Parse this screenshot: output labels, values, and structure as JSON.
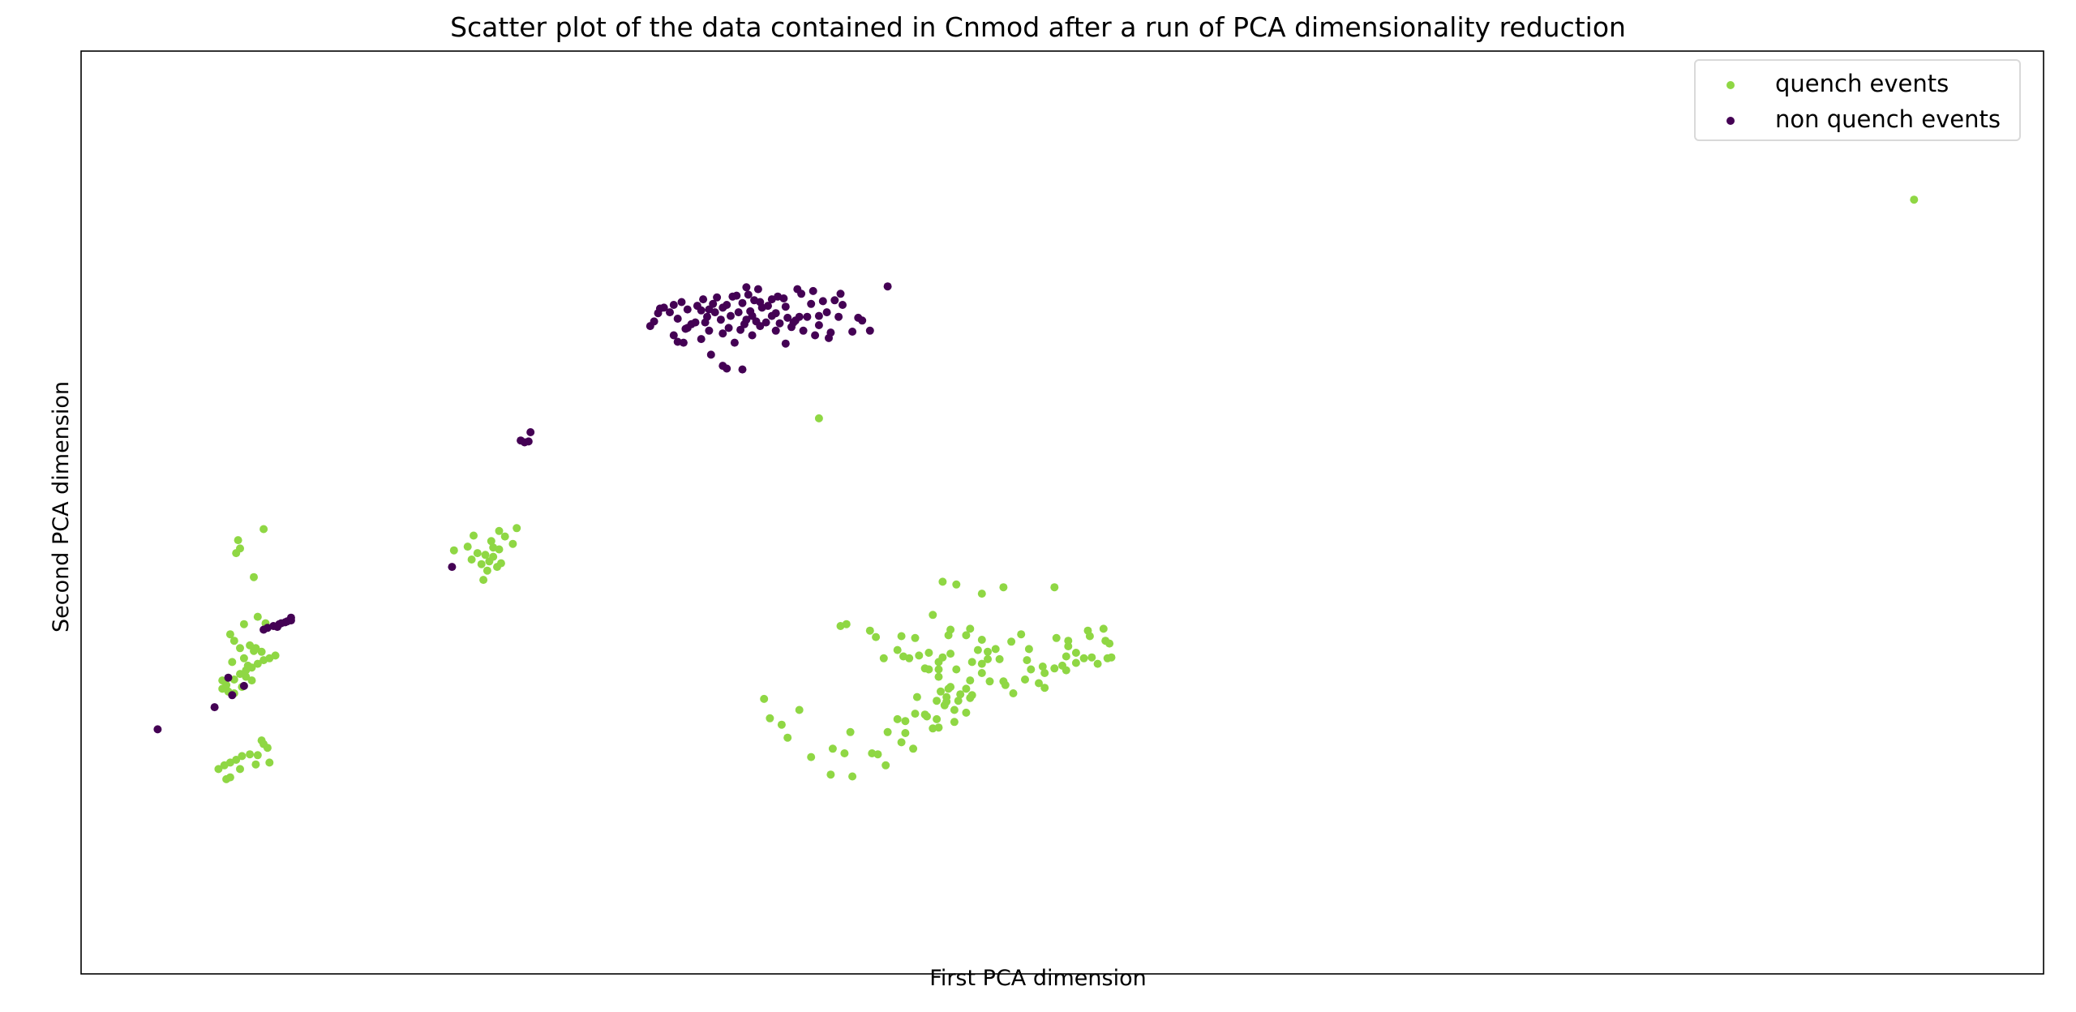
{
  "colors": {
    "quench": "#8fd744",
    "non_quench": "#440154",
    "axes": "#000000"
  },
  "chart_data": {
    "type": "scatter",
    "title": "Scatter plot of the data contained in Cnmod after a run of PCA dimensionality reduction",
    "xlabel": "First PCA dimension",
    "ylabel": "Second PCA dimension",
    "xticks": [],
    "yticks": [],
    "xlim": [
      0,
      1
    ],
    "ylim": [
      0,
      1
    ],
    "grid": false,
    "legend_position": "top-right",
    "series": [
      {
        "name": "quench events",
        "color": "#8fd744",
        "points": [
          [
            0.934,
            0.839
          ],
          [
            0.376,
            0.602
          ],
          [
            0.08,
            0.47
          ],
          [
            0.093,
            0.482
          ],
          [
            0.079,
            0.456
          ],
          [
            0.081,
            0.461
          ],
          [
            0.088,
            0.43
          ],
          [
            0.083,
            0.379
          ],
          [
            0.088,
            0.35
          ],
          [
            0.087,
            0.318
          ],
          [
            0.09,
            0.387
          ],
          [
            0.094,
            0.38
          ],
          [
            0.072,
            0.318
          ],
          [
            0.075,
            0.306
          ],
          [
            0.078,
            0.304
          ],
          [
            0.082,
            0.311
          ],
          [
            0.084,
            0.322
          ],
          [
            0.089,
            0.227
          ],
          [
            0.096,
            0.229
          ],
          [
            0.093,
            0.249
          ],
          [
            0.086,
            0.238
          ],
          [
            0.095,
            0.245
          ],
          [
            0.085,
            0.334
          ],
          [
            0.083,
            0.342
          ],
          [
            0.081,
            0.353
          ],
          [
            0.078,
            0.361
          ],
          [
            0.076,
            0.368
          ],
          [
            0.077,
            0.338
          ],
          [
            0.072,
            0.309
          ],
          [
            0.074,
            0.313
          ],
          [
            0.078,
            0.319
          ],
          [
            0.081,
            0.325
          ],
          [
            0.084,
            0.329
          ],
          [
            0.087,
            0.332
          ],
          [
            0.09,
            0.336
          ],
          [
            0.093,
            0.34
          ],
          [
            0.096,
            0.342
          ],
          [
            0.099,
            0.345
          ],
          [
            0.092,
            0.349
          ],
          [
            0.089,
            0.353
          ],
          [
            0.086,
            0.356
          ],
          [
            0.073,
            0.226
          ],
          [
            0.076,
            0.229
          ],
          [
            0.079,
            0.232
          ],
          [
            0.082,
            0.236
          ],
          [
            0.074,
            0.211
          ],
          [
            0.076,
            0.213
          ],
          [
            0.081,
            0.222
          ],
          [
            0.09,
            0.237
          ],
          [
            0.092,
            0.253
          ],
          [
            0.07,
            0.222
          ],
          [
            0.19,
            0.459
          ],
          [
            0.197,
            0.463
          ],
          [
            0.199,
            0.449
          ],
          [
            0.202,
            0.456
          ],
          [
            0.204,
            0.444
          ],
          [
            0.206,
            0.454
          ],
          [
            0.208,
            0.447
          ],
          [
            0.21,
            0.462
          ],
          [
            0.212,
            0.441
          ],
          [
            0.214,
            0.445
          ],
          [
            0.207,
            0.437
          ],
          [
            0.213,
            0.46
          ],
          [
            0.216,
            0.474
          ],
          [
            0.22,
            0.466
          ],
          [
            0.205,
            0.427
          ],
          [
            0.209,
            0.469
          ],
          [
            0.222,
            0.483
          ],
          [
            0.2,
            0.475
          ],
          [
            0.213,
            0.48
          ],
          [
            0.21,
            0.452
          ],
          [
            0.348,
            0.298
          ],
          [
            0.357,
            0.27
          ],
          [
            0.351,
            0.277
          ],
          [
            0.366,
            0.286
          ],
          [
            0.36,
            0.256
          ],
          [
            0.382,
            0.216
          ],
          [
            0.372,
            0.235
          ],
          [
            0.383,
            0.244
          ],
          [
            0.392,
            0.262
          ],
          [
            0.389,
            0.239
          ],
          [
            0.41,
            0.226
          ],
          [
            0.393,
            0.214
          ],
          [
            0.403,
            0.239
          ],
          [
            0.411,
            0.262
          ],
          [
            0.42,
            0.261
          ],
          [
            0.424,
            0.244
          ],
          [
            0.406,
            0.238
          ],
          [
            0.416,
            0.276
          ],
          [
            0.431,
            0.279
          ],
          [
            0.426,
            0.3
          ],
          [
            0.418,
            0.251
          ],
          [
            0.44,
            0.291
          ],
          [
            0.434,
            0.266
          ],
          [
            0.445,
            0.286
          ],
          [
            0.441,
            0.295
          ],
          [
            0.43,
            0.281
          ],
          [
            0.448,
            0.303
          ],
          [
            0.425,
            0.282
          ],
          [
            0.437,
            0.267
          ],
          [
            0.441,
            0.3
          ],
          [
            0.42,
            0.274
          ],
          [
            0.453,
            0.318
          ],
          [
            0.453,
            0.299
          ],
          [
            0.442,
            0.309
          ],
          [
            0.436,
            0.296
          ],
          [
            0.437,
            0.322
          ],
          [
            0.445,
            0.273
          ],
          [
            0.436,
            0.276
          ],
          [
            0.454,
            0.302
          ],
          [
            0.451,
            0.309
          ],
          [
            0.443,
            0.311
          ],
          [
            0.438,
            0.306
          ],
          [
            0.447,
            0.296
          ],
          [
            0.451,
            0.283
          ],
          [
            0.432,
            0.33
          ],
          [
            0.402,
            0.372
          ],
          [
            0.405,
            0.365
          ],
          [
            0.409,
            0.342
          ],
          [
            0.387,
            0.377
          ],
          [
            0.39,
            0.379
          ],
          [
            0.418,
            0.366
          ],
          [
            0.425,
            0.364
          ],
          [
            0.422,
            0.342
          ],
          [
            0.427,
            0.345
          ],
          [
            0.432,
            0.348
          ],
          [
            0.439,
            0.343
          ],
          [
            0.443,
            0.347
          ],
          [
            0.437,
            0.338
          ],
          [
            0.416,
            0.351
          ],
          [
            0.419,
            0.344
          ],
          [
            0.43,
            0.331
          ],
          [
            0.437,
            0.33
          ],
          [
            0.446,
            0.33
          ],
          [
            0.454,
            0.338
          ],
          [
            0.462,
            0.341
          ],
          [
            0.457,
            0.351
          ],
          [
            0.459,
            0.336
          ],
          [
            0.462,
            0.349
          ],
          [
            0.466,
            0.352
          ],
          [
            0.468,
            0.341
          ],
          [
            0.463,
            0.317
          ],
          [
            0.47,
            0.317
          ],
          [
            0.471,
            0.313
          ],
          [
            0.475,
            0.304
          ],
          [
            0.481,
            0.319
          ],
          [
            0.488,
            0.315
          ],
          [
            0.491,
            0.31
          ],
          [
            0.491,
            0.326
          ],
          [
            0.482,
            0.34
          ],
          [
            0.484,
            0.33
          ],
          [
            0.483,
            0.352
          ],
          [
            0.49,
            0.333
          ],
          [
            0.496,
            0.331
          ],
          [
            0.502,
            0.329
          ],
          [
            0.5,
            0.334
          ],
          [
            0.502,
            0.344
          ],
          [
            0.503,
            0.355
          ],
          [
            0.507,
            0.337
          ],
          [
            0.511,
            0.342
          ],
          [
            0.515,
            0.343
          ],
          [
            0.513,
            0.372
          ],
          [
            0.522,
            0.361
          ],
          [
            0.524,
            0.358
          ],
          [
            0.523,
            0.342
          ],
          [
            0.521,
            0.374
          ],
          [
            0.514,
            0.366
          ],
          [
            0.439,
            0.425
          ],
          [
            0.434,
            0.389
          ],
          [
            0.47,
            0.419
          ],
          [
            0.459,
            0.412
          ],
          [
            0.446,
            0.422
          ],
          [
            0.451,
            0.367
          ],
          [
            0.443,
            0.373
          ],
          [
            0.442,
            0.367
          ],
          [
            0.453,
            0.374
          ],
          [
            0.459,
            0.362
          ],
          [
            0.479,
            0.368
          ],
          [
            0.496,
            0.419
          ],
          [
            0.497,
            0.364
          ],
          [
            0.507,
            0.348
          ],
          [
            0.518,
            0.336
          ],
          [
            0.525,
            0.343
          ],
          [
            0.503,
            0.361
          ],
          [
            0.474,
            0.36
          ],
          [
            0.459,
            0.326
          ]
        ]
      },
      {
        "name": "non quench events",
        "color": "#440154",
        "points": [
          [
            0.039,
            0.265
          ],
          [
            0.068,
            0.289
          ],
          [
            0.077,
            0.302
          ],
          [
            0.083,
            0.312
          ],
          [
            0.075,
            0.321
          ],
          [
            0.095,
            0.375
          ],
          [
            0.098,
            0.377
          ],
          [
            0.101,
            0.379
          ],
          [
            0.104,
            0.381
          ],
          [
            0.107,
            0.383
          ],
          [
            0.102,
            0.38
          ],
          [
            0.105,
            0.382
          ],
          [
            0.093,
            0.373
          ],
          [
            0.1,
            0.376
          ],
          [
            0.107,
            0.386
          ],
          [
            0.189,
            0.441
          ],
          [
            0.224,
            0.578
          ],
          [
            0.226,
            0.576
          ],
          [
            0.229,
            0.587
          ],
          [
            0.228,
            0.577
          ],
          [
            0.29,
            0.702
          ],
          [
            0.294,
            0.716
          ],
          [
            0.295,
            0.721
          ],
          [
            0.292,
            0.707
          ],
          [
            0.297,
            0.722
          ],
          [
            0.3,
            0.717
          ],
          [
            0.302,
            0.725
          ],
          [
            0.304,
            0.71
          ],
          [
            0.306,
            0.728
          ],
          [
            0.309,
            0.72
          ],
          [
            0.311,
            0.704
          ],
          [
            0.313,
            0.706
          ],
          [
            0.314,
            0.724
          ],
          [
            0.316,
            0.719
          ],
          [
            0.317,
            0.731
          ],
          [
            0.319,
            0.712
          ],
          [
            0.32,
            0.72
          ],
          [
            0.322,
            0.726
          ],
          [
            0.324,
            0.733
          ],
          [
            0.326,
            0.709
          ],
          [
            0.327,
            0.694
          ],
          [
            0.329,
            0.725
          ],
          [
            0.331,
            0.713
          ],
          [
            0.332,
            0.734
          ],
          [
            0.334,
            0.735
          ],
          [
            0.335,
            0.717
          ],
          [
            0.337,
            0.727
          ],
          [
            0.338,
            0.704
          ],
          [
            0.34,
            0.736
          ],
          [
            0.341,
            0.718
          ],
          [
            0.343,
            0.73
          ],
          [
            0.344,
            0.707
          ],
          [
            0.346,
            0.728
          ],
          [
            0.347,
            0.722
          ],
          [
            0.349,
            0.706
          ],
          [
            0.35,
            0.724
          ],
          [
            0.352,
            0.731
          ],
          [
            0.354,
            0.716
          ],
          [
            0.356,
            0.705
          ],
          [
            0.358,
            0.732
          ],
          [
            0.36,
            0.711
          ],
          [
            0.362,
            0.701
          ],
          [
            0.364,
            0.708
          ],
          [
            0.366,
            0.712
          ],
          [
            0.368,
            0.697
          ],
          [
            0.37,
            0.712
          ],
          [
            0.372,
            0.726
          ],
          [
            0.374,
            0.692
          ],
          [
            0.376,
            0.703
          ],
          [
            0.378,
            0.729
          ],
          [
            0.38,
            0.717
          ],
          [
            0.382,
            0.695
          ],
          [
            0.384,
            0.73
          ],
          [
            0.386,
            0.712
          ],
          [
            0.388,
            0.725
          ],
          [
            0.393,
            0.696
          ],
          [
            0.396,
            0.711
          ],
          [
            0.402,
            0.697
          ],
          [
            0.411,
            0.745
          ],
          [
            0.398,
            0.708
          ],
          [
            0.381,
            0.689
          ],
          [
            0.387,
            0.737
          ],
          [
            0.373,
            0.74
          ],
          [
            0.367,
            0.737
          ],
          [
            0.365,
            0.742
          ],
          [
            0.345,
            0.742
          ],
          [
            0.339,
            0.744
          ],
          [
            0.323,
            0.717
          ],
          [
            0.318,
            0.706
          ],
          [
            0.308,
            0.699
          ],
          [
            0.302,
            0.692
          ],
          [
            0.304,
            0.685
          ],
          [
            0.307,
            0.684
          ],
          [
            0.309,
            0.7
          ],
          [
            0.316,
            0.688
          ],
          [
            0.32,
            0.697
          ],
          [
            0.327,
            0.722
          ],
          [
            0.33,
            0.7
          ],
          [
            0.333,
            0.684
          ],
          [
            0.336,
            0.698
          ],
          [
            0.339,
            0.709
          ],
          [
            0.342,
            0.713
          ],
          [
            0.346,
            0.702
          ],
          [
            0.352,
            0.713
          ],
          [
            0.355,
            0.734
          ],
          [
            0.359,
            0.723
          ],
          [
            0.363,
            0.706
          ],
          [
            0.321,
            0.671
          ],
          [
            0.327,
            0.659
          ],
          [
            0.329,
            0.656
          ],
          [
            0.337,
            0.655
          ],
          [
            0.359,
            0.683
          ],
          [
            0.354,
            0.697
          ],
          [
            0.342,
            0.692
          ],
          [
            0.376,
            0.713
          ]
        ]
      }
    ]
  }
}
